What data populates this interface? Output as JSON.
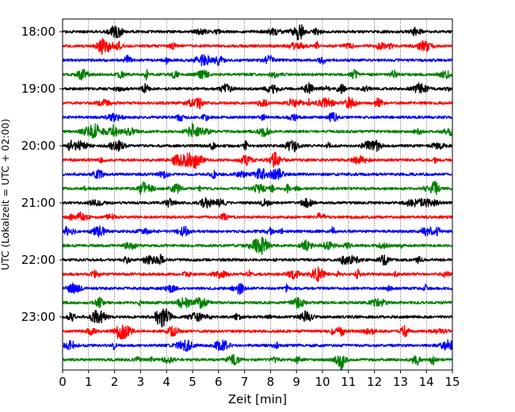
{
  "chart_data": {
    "type": "line",
    "subtype": "helicorder-seismogram",
    "title": "",
    "xlabel": "Zeit  [min]",
    "ylabel": "UTC (Lokalzeit = UTC + 02:00)",
    "xlim": [
      0,
      15
    ],
    "x_ticks": [
      "0",
      "1",
      "2",
      "3",
      "4",
      "5",
      "6",
      "7",
      "8",
      "9",
      "10",
      "11",
      "12",
      "13",
      "14",
      "15"
    ],
    "y_tick_labels": [
      "18:00",
      "19:00",
      "20:00",
      "21:00",
      "22:00",
      "23:00"
    ],
    "trace_interval_minutes": 15,
    "start_time": "18:00",
    "grid": "vertical dotted lines at every minute",
    "color_cycle": [
      "#000000",
      "#ff0000",
      "#0000ff",
      "#008000"
    ],
    "traces": [
      {
        "start": "18:00",
        "color": "#000000"
      },
      {
        "start": "18:15",
        "color": "#ff0000"
      },
      {
        "start": "18:30",
        "color": "#0000ff"
      },
      {
        "start": "18:45",
        "color": "#008000"
      },
      {
        "start": "19:00",
        "color": "#000000"
      },
      {
        "start": "19:15",
        "color": "#ff0000"
      },
      {
        "start": "19:30",
        "color": "#0000ff"
      },
      {
        "start": "19:45",
        "color": "#008000"
      },
      {
        "start": "20:00",
        "color": "#000000"
      },
      {
        "start": "20:15",
        "color": "#ff0000"
      },
      {
        "start": "20:30",
        "color": "#0000ff"
      },
      {
        "start": "20:45",
        "color": "#008000"
      },
      {
        "start": "21:00",
        "color": "#000000"
      },
      {
        "start": "21:15",
        "color": "#ff0000"
      },
      {
        "start": "21:30",
        "color": "#0000ff"
      },
      {
        "start": "21:45",
        "color": "#008000"
      },
      {
        "start": "22:00",
        "color": "#000000"
      },
      {
        "start": "22:15",
        "color": "#ff0000"
      },
      {
        "start": "22:30",
        "color": "#0000ff"
      },
      {
        "start": "22:45",
        "color": "#008000"
      },
      {
        "start": "23:00",
        "color": "#000000"
      },
      {
        "start": "23:15",
        "color": "#ff0000"
      },
      {
        "start": "23:30",
        "color": "#0000ff"
      },
      {
        "start": "23:45",
        "color": "#008000"
      }
    ]
  }
}
